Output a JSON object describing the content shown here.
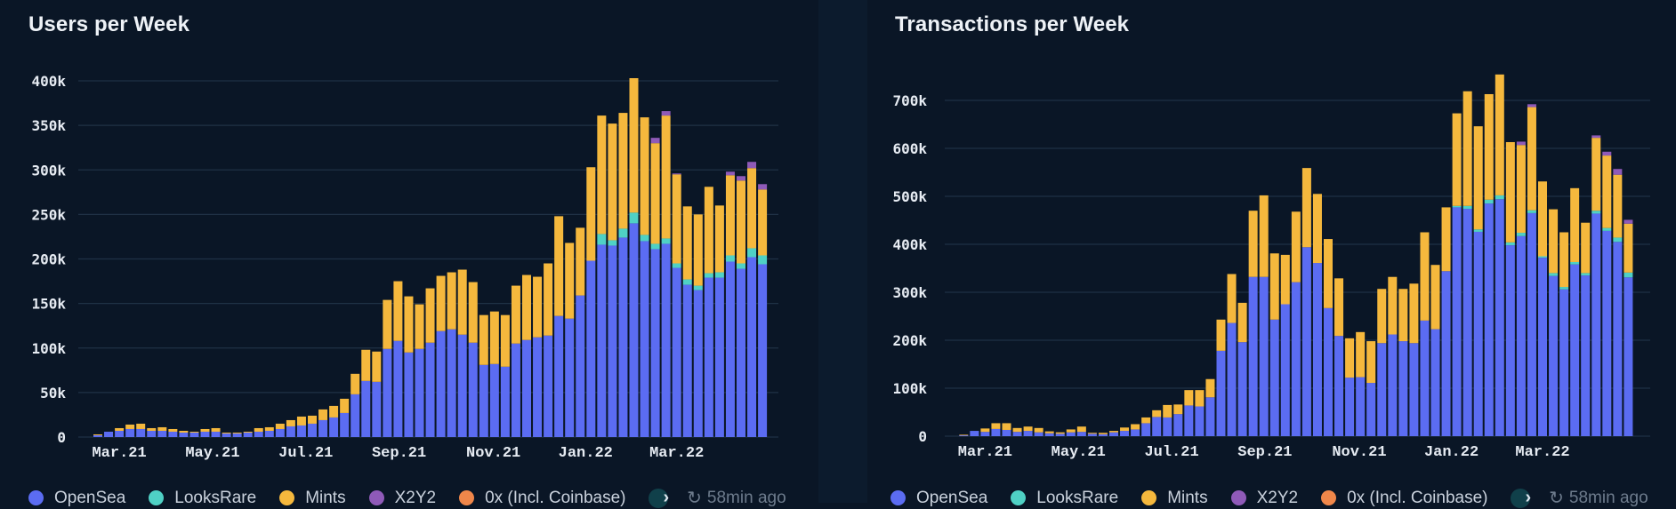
{
  "legend": {
    "items": [
      {
        "label": "OpenSea",
        "color": "#5b6cf2"
      },
      {
        "label": "LooksRare",
        "color": "#4fd1c5"
      },
      {
        "label": "Mints",
        "color": "#f5b83d"
      },
      {
        "label": "X2Y2",
        "color": "#8f5ab8"
      },
      {
        "label": "0x (Incl. Coinbase)",
        "color": "#f0874a"
      }
    ],
    "more_icon": "chevron-right-icon",
    "refresh_icon": "clock-refresh-icon",
    "updated": "58min ago"
  },
  "chart_data": [
    {
      "type": "bar",
      "stacked": true,
      "title": "Users per Week",
      "xlabel": "",
      "ylabel": "",
      "ylim": [
        0,
        400000
      ],
      "yticks": [
        0,
        50000,
        100000,
        150000,
        200000,
        250000,
        300000,
        350000,
        400000
      ],
      "ytick_labels": [
        "0",
        "50k",
        "100k",
        "150k",
        "200k",
        "250k",
        "300k",
        "350k",
        "400k"
      ],
      "xtick_labels": [
        {
          "label": "Mar.21",
          "week": 3
        },
        {
          "label": "May.21",
          "week": 11.7
        },
        {
          "label": "Jul.21",
          "week": 20.4
        },
        {
          "label": "Sep.21",
          "week": 29.1
        },
        {
          "label": "Nov.21",
          "week": 37.9
        },
        {
          "label": "Jan.22",
          "week": 46.5
        },
        {
          "label": "Mar.22",
          "week": 55
        }
      ],
      "grid": true,
      "legend": "bottom",
      "weeks": 63,
      "series": [
        {
          "name": "OpenSea",
          "values": [
            2000,
            6000,
            7000,
            9000,
            9000,
            7000,
            7000,
            6000,
            5000,
            5000,
            6000,
            6000,
            4000,
            4000,
            5000,
            6000,
            7000,
            9000,
            12000,
            13000,
            15000,
            19000,
            22000,
            27000,
            48000,
            63000,
            62000,
            99000,
            108000,
            95000,
            99000,
            106000,
            119000,
            121000,
            115000,
            106000,
            81000,
            82000,
            79000,
            105000,
            109000,
            112000,
            114000,
            136000,
            133000,
            159000,
            198000,
            216000,
            215000,
            224000,
            240000,
            220000,
            211000,
            217000,
            190000,
            171000,
            165000,
            179000,
            179000,
            197000,
            189000,
            202000,
            194000
          ]
        },
        {
          "name": "LooksRare",
          "values": [
            0,
            0,
            0,
            0,
            0,
            0,
            0,
            0,
            0,
            0,
            0,
            0,
            0,
            0,
            0,
            0,
            0,
            0,
            0,
            0,
            0,
            0,
            0,
            0,
            0,
            0,
            0,
            0,
            0,
            0,
            0,
            0,
            0,
            0,
            0,
            0,
            0,
            0,
            0,
            0,
            0,
            0,
            0,
            0,
            0,
            0,
            0,
            12000,
            6000,
            10000,
            12000,
            7000,
            6000,
            6000,
            5000,
            6000,
            5000,
            5000,
            6000,
            7000,
            6000,
            10000,
            10000
          ]
        },
        {
          "name": "Mints",
          "values": [
            1000,
            0,
            3000,
            5000,
            6000,
            3000,
            4000,
            3000,
            2000,
            1000,
            3000,
            4000,
            1000,
            1000,
            1000,
            4000,
            4000,
            6000,
            7000,
            10000,
            9000,
            12000,
            13000,
            16000,
            23000,
            35000,
            34000,
            55000,
            67000,
            63000,
            50000,
            61000,
            62000,
            64000,
            73000,
            68000,
            56000,
            59000,
            58000,
            65000,
            73000,
            68000,
            81000,
            112000,
            85000,
            76000,
            105000,
            133000,
            131000,
            130000,
            151000,
            132000,
            113000,
            138000,
            100000,
            82000,
            80000,
            97000,
            75000,
            90000,
            93000,
            90000,
            74000
          ]
        },
        {
          "name": "X2Y2",
          "values": [
            0,
            0,
            0,
            0,
            0,
            0,
            0,
            0,
            0,
            0,
            0,
            0,
            0,
            0,
            0,
            0,
            0,
            0,
            0,
            0,
            0,
            0,
            0,
            0,
            0,
            0,
            0,
            0,
            0,
            0,
            0,
            0,
            0,
            0,
            0,
            0,
            0,
            0,
            0,
            0,
            0,
            0,
            0,
            0,
            0,
            0,
            0,
            0,
            0,
            0,
            0,
            0,
            6000,
            5000,
            1000,
            0,
            0,
            0,
            0,
            4000,
            5000,
            7000,
            6000
          ]
        },
        {
          "name": "0x (Incl. Coinbase)",
          "values": [
            0,
            0,
            0,
            0,
            0,
            0,
            0,
            0,
            0,
            0,
            0,
            0,
            0,
            0,
            0,
            0,
            0,
            0,
            0,
            0,
            0,
            0,
            0,
            0,
            0,
            0,
            0,
            0,
            0,
            0,
            0,
            0,
            0,
            0,
            0,
            0,
            0,
            0,
            0,
            0,
            0,
            0,
            0,
            0,
            0,
            0,
            0,
            0,
            0,
            0,
            0,
            0,
            0,
            0,
            0,
            0,
            0,
            0,
            0,
            0,
            0,
            0,
            0
          ]
        }
      ]
    },
    {
      "type": "bar",
      "stacked": true,
      "title": "Transactions per Week",
      "xlabel": "",
      "ylabel": "",
      "ylim": [
        0,
        700000
      ],
      "yticks": [
        0,
        100000,
        200000,
        300000,
        400000,
        500000,
        600000,
        700000
      ],
      "ytick_labels": [
        "0",
        "100k",
        "200k",
        "300k",
        "400k",
        "500k",
        "600k",
        "700k"
      ],
      "xtick_labels": [
        {
          "label": "Mar.21",
          "week": 3
        },
        {
          "label": "May.21",
          "week": 11.7
        },
        {
          "label": "Jul.21",
          "week": 20.4
        },
        {
          "label": "Sep.21",
          "week": 29.1
        },
        {
          "label": "Nov.21",
          "week": 37.9
        },
        {
          "label": "Jan.22",
          "week": 46.5
        },
        {
          "label": "Mar.22",
          "week": 55
        }
      ],
      "grid": true,
      "legend": "bottom",
      "weeks": 63,
      "series": [
        {
          "name": "OpenSea",
          "values": [
            2000,
            11000,
            9000,
            15000,
            13000,
            9000,
            11000,
            8000,
            6000,
            5000,
            8000,
            9000,
            5000,
            4000,
            8000,
            11000,
            14000,
            27000,
            40000,
            39000,
            46000,
            64000,
            62000,
            81000,
            178000,
            236000,
            196000,
            332000,
            332000,
            243000,
            275000,
            321000,
            394000,
            361000,
            267000,
            209000,
            122000,
            123000,
            111000,
            194000,
            212000,
            198000,
            194000,
            241000,
            223000,
            344000,
            477000,
            474000,
            426000,
            485000,
            494000,
            398000,
            417000,
            465000,
            372000,
            334000,
            306000,
            358000,
            335000,
            464000,
            428000,
            405000,
            331000
          ]
        },
        {
          "name": "LooksRare",
          "values": [
            0,
            0,
            0,
            0,
            0,
            0,
            0,
            0,
            0,
            0,
            0,
            0,
            0,
            0,
            0,
            0,
            0,
            0,
            0,
            0,
            0,
            0,
            0,
            0,
            0,
            0,
            0,
            0,
            0,
            0,
            0,
            0,
            0,
            0,
            0,
            0,
            0,
            0,
            0,
            0,
            0,
            0,
            0,
            0,
            0,
            0,
            3000,
            6000,
            5000,
            8000,
            8000,
            6000,
            7000,
            6000,
            3000,
            6000,
            5000,
            5000,
            5000,
            6000,
            6000,
            9000,
            10000
          ]
        },
        {
          "name": "Mints",
          "values": [
            1000,
            0,
            7000,
            12000,
            14000,
            8000,
            9000,
            9000,
            4000,
            3000,
            6000,
            11000,
            2000,
            3000,
            3000,
            7000,
            11000,
            12000,
            14000,
            26000,
            20000,
            32000,
            34000,
            38000,
            65000,
            102000,
            82000,
            138000,
            170000,
            138000,
            103000,
            147000,
            165000,
            144000,
            144000,
            120000,
            82000,
            94000,
            87000,
            113000,
            120000,
            109000,
            124000,
            184000,
            134000,
            133000,
            193000,
            239000,
            215000,
            220000,
            252000,
            209000,
            183000,
            215000,
            156000,
            133000,
            114000,
            154000,
            105000,
            152000,
            151000,
            131000,
            102000
          ]
        },
        {
          "name": "X2Y2",
          "values": [
            0,
            0,
            0,
            0,
            0,
            0,
            0,
            0,
            0,
            0,
            0,
            0,
            0,
            0,
            0,
            0,
            0,
            0,
            0,
            0,
            0,
            0,
            0,
            0,
            0,
            0,
            0,
            0,
            0,
            0,
            0,
            0,
            0,
            0,
            0,
            0,
            0,
            0,
            0,
            0,
            0,
            0,
            0,
            0,
            0,
            0,
            0,
            0,
            0,
            0,
            0,
            0,
            7000,
            6000,
            0,
            0,
            0,
            0,
            0,
            5000,
            8000,
            12000,
            8000
          ]
        },
        {
          "name": "0x (Incl. Coinbase)",
          "values": [
            0,
            0,
            0,
            0,
            0,
            0,
            0,
            0,
            0,
            0,
            0,
            0,
            0,
            0,
            0,
            0,
            0,
            0,
            0,
            0,
            0,
            0,
            0,
            0,
            0,
            0,
            0,
            0,
            0,
            0,
            0,
            0,
            0,
            0,
            0,
            0,
            0,
            0,
            0,
            0,
            0,
            0,
            0,
            0,
            0,
            0,
            0,
            0,
            0,
            0,
            0,
            0,
            0,
            0,
            0,
            0,
            0,
            0,
            0,
            0,
            0,
            0,
            0
          ]
        }
      ]
    }
  ]
}
